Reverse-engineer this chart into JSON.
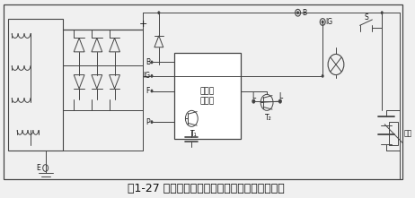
{
  "title": "图1-27 夏利轿车用整体式交流发电机电路原理图",
  "title_fontsize": 9,
  "bg_color": "#f0f0f0",
  "line_color": "#444444",
  "text_color": "#111111",
  "labels": {
    "plus": "+",
    "B_left": "B",
    "IG_left": "IG",
    "F": "F",
    "P": "P",
    "E": "E",
    "T1": "T₁",
    "T2": "T₂",
    "L1": "L",
    "L2": "L",
    "B_top": "B",
    "IG_top": "IG",
    "S": "S",
    "unit_label": "单片集\n成电路",
    "load": "负载"
  }
}
